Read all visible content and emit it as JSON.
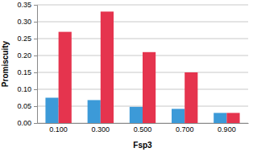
{
  "chart_data": {
    "type": "bar",
    "x_label": "Fsp3",
    "y_label": "Promiscuity",
    "categories": [
      "0.100",
      "0.300",
      "0.500",
      "0.700",
      "0.900"
    ],
    "series": [
      {
        "color": "#3c9ad8",
        "values": [
          0.075,
          0.068,
          0.048,
          0.042,
          0.03
        ]
      },
      {
        "color": "#e5344e",
        "values": [
          0.27,
          0.33,
          0.21,
          0.15,
          0.03
        ]
      }
    ],
    "ylim": [
      0,
      0.35
    ],
    "yticks": [
      {
        "value": 0,
        "label": "0.00"
      },
      {
        "value": 0.05,
        "label": "0.05"
      },
      {
        "value": 0.1,
        "label": "0.10"
      },
      {
        "value": 0.15,
        "label": "0.15"
      },
      {
        "value": 0.2,
        "label": "0.20"
      },
      {
        "value": 0.25,
        "label": "0.25"
      },
      {
        "value": 0.3,
        "label": "0.30"
      },
      {
        "value": 0.35,
        "label": "0.35"
      }
    ],
    "grid": true
  }
}
